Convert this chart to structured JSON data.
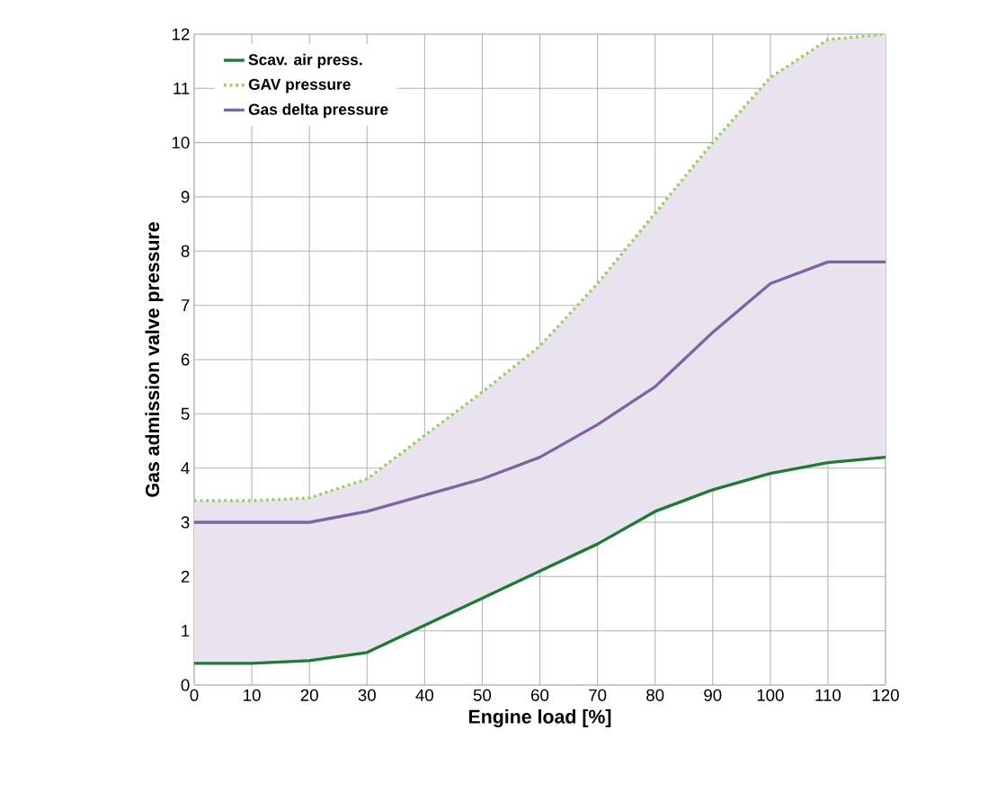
{
  "chart_data": {
    "type": "line",
    "xlabel": "Engine load [%]",
    "ylabel": "Gas admission valve pressure",
    "x": [
      0,
      10,
      20,
      30,
      40,
      50,
      60,
      70,
      80,
      90,
      100,
      110,
      120
    ],
    "series": [
      {
        "name": "Scav. air press.",
        "color": "#1e7b34",
        "line_style": "solid",
        "values": [
          0.4,
          0.4,
          0.45,
          0.6,
          1.1,
          1.6,
          2.1,
          2.6,
          3.2,
          3.6,
          3.9,
          4.1,
          4.2
        ]
      },
      {
        "name": "GAV pressure",
        "color": "#92d050",
        "line_style": "dotted",
        "values": [
          3.4,
          3.4,
          3.45,
          3.8,
          4.6,
          5.4,
          6.25,
          7.4,
          8.7,
          10.0,
          11.2,
          11.9,
          12.0
        ]
      },
      {
        "name": "Gas delta pressure",
        "color": "#8064a2",
        "line_style": "solid",
        "values": [
          3.0,
          3.0,
          3.0,
          3.2,
          3.5,
          3.8,
          4.2,
          4.8,
          5.5,
          6.5,
          7.4,
          7.8,
          7.8
        ],
        "lower": [
          0.4,
          0.4,
          0.45,
          0.6,
          1.1,
          1.6,
          2.1,
          2.6,
          3.2,
          3.6,
          3.9,
          4.1,
          4.2
        ],
        "upper": [
          3.4,
          3.4,
          3.45,
          3.8,
          4.6,
          5.4,
          6.25,
          7.4,
          8.7,
          10.0,
          11.2,
          11.9,
          12.0
        ]
      }
    ],
    "xlim": [
      0,
      120
    ],
    "ylim": [
      0,
      12
    ],
    "xticks": [
      0,
      10,
      20,
      30,
      40,
      50,
      60,
      70,
      80,
      90,
      100,
      110,
      120
    ],
    "yticks": [
      0,
      1,
      2,
      3,
      4,
      5,
      6,
      7,
      8,
      9,
      10,
      11,
      12
    ],
    "grid": true,
    "legend": "top left",
    "marker": "none"
  }
}
